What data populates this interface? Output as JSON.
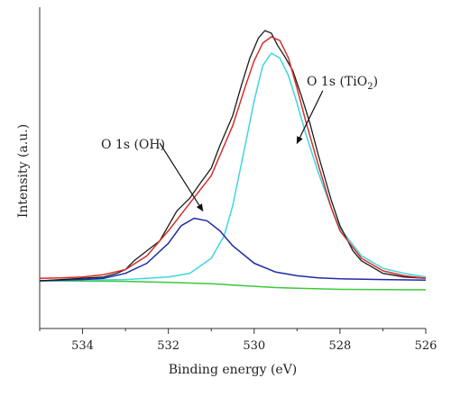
{
  "chart_data": {
    "type": "line",
    "title": "",
    "xlabel": "Binding energy (eV)",
    "ylabel": "Intensity (a.u.)",
    "xlim": [
      535,
      526
    ],
    "ylim": [
      0,
      1.05
    ],
    "x_reversed": true,
    "x_ticks": [
      534,
      532,
      530,
      528,
      526
    ],
    "y_tick_labels": false,
    "grid": false,
    "legend": "none",
    "series": [
      {
        "key": "raw",
        "color": "#1a1a1a",
        "x": [
          535.0,
          534.5,
          534.0,
          533.5,
          533.2,
          533.0,
          532.8,
          532.5,
          532.2,
          532.0,
          531.8,
          531.5,
          531.3,
          531.0,
          530.8,
          530.5,
          530.3,
          530.1,
          529.9,
          529.75,
          529.6,
          529.45,
          529.3,
          529.1,
          528.9,
          528.7,
          528.5,
          528.2,
          528.0,
          527.7,
          527.5,
          527.2,
          527.0,
          526.5,
          526.0
        ],
        "y": [
          0.0,
          0.005,
          0.01,
          0.015,
          0.03,
          0.045,
          0.08,
          0.12,
          0.16,
          0.22,
          0.28,
          0.33,
          0.38,
          0.45,
          0.54,
          0.66,
          0.78,
          0.89,
          0.97,
          1.0,
          0.99,
          0.94,
          0.9,
          0.84,
          0.74,
          0.63,
          0.5,
          0.32,
          0.22,
          0.12,
          0.08,
          0.05,
          0.03,
          0.015,
          0.01
        ]
      },
      {
        "key": "fit_envelope",
        "color": "#d2302a",
        "x": [
          535.0,
          534.5,
          534.0,
          533.5,
          533.0,
          532.5,
          532.0,
          531.5,
          531.0,
          530.5,
          530.2,
          530.0,
          529.8,
          529.6,
          529.4,
          529.2,
          529.0,
          528.8,
          528.5,
          528.2,
          528.0,
          527.5,
          527.0,
          526.5,
          526.0
        ],
        "y": [
          0.01,
          0.012,
          0.015,
          0.025,
          0.045,
          0.1,
          0.2,
          0.31,
          0.42,
          0.62,
          0.78,
          0.88,
          0.95,
          0.975,
          0.96,
          0.89,
          0.77,
          0.64,
          0.46,
          0.29,
          0.2,
          0.09,
          0.04,
          0.02,
          0.01
        ]
      },
      {
        "key": "tio2_component",
        "color": "#3fd6e0",
        "x": [
          535.0,
          533.0,
          532.0,
          531.5,
          531.0,
          530.7,
          530.5,
          530.2,
          530.0,
          529.8,
          529.6,
          529.4,
          529.2,
          529.0,
          528.8,
          528.5,
          528.2,
          528.0,
          527.5,
          527.0,
          526.5,
          526.0
        ],
        "y": [
          0.0,
          0.005,
          0.015,
          0.03,
          0.09,
          0.18,
          0.3,
          0.55,
          0.72,
          0.86,
          0.91,
          0.89,
          0.82,
          0.71,
          0.59,
          0.43,
          0.29,
          0.21,
          0.1,
          0.05,
          0.03,
          0.015
        ]
      },
      {
        "key": "oh_component",
        "color": "#1f2aa8",
        "x": [
          535.0,
          534.0,
          533.5,
          533.0,
          532.5,
          532.0,
          531.7,
          531.4,
          531.1,
          530.8,
          530.5,
          530.0,
          529.5,
          529.0,
          528.5,
          528.0,
          527.0,
          526.0
        ],
        "y": [
          0.0,
          0.005,
          0.01,
          0.03,
          0.07,
          0.15,
          0.22,
          0.25,
          0.24,
          0.2,
          0.14,
          0.07,
          0.035,
          0.02,
          0.012,
          0.008,
          0.005,
          0.003
        ]
      },
      {
        "key": "background",
        "color": "#3cc83c",
        "x": [
          535.0,
          533.0,
          532.0,
          531.0,
          530.0,
          529.5,
          529.0,
          528.5,
          528.0,
          527.0,
          526.0
        ],
        "y": [
          0.0,
          -0.002,
          -0.006,
          -0.012,
          -0.022,
          -0.027,
          -0.03,
          -0.032,
          -0.034,
          -0.035,
          -0.036
        ]
      }
    ],
    "annotations": [
      {
        "key": "oh",
        "text": "O 1s (OH)",
        "point_to": [
          531.2,
          0.28
        ],
        "from": [
          532.2,
          0.55
        ]
      },
      {
        "key": "tio2",
        "text_main": "O 1s (TiO",
        "text_sub": "2",
        "text_end": ")",
        "point_to": [
          529.0,
          0.55
        ],
        "from": [
          528.4,
          0.76
        ]
      }
    ]
  }
}
